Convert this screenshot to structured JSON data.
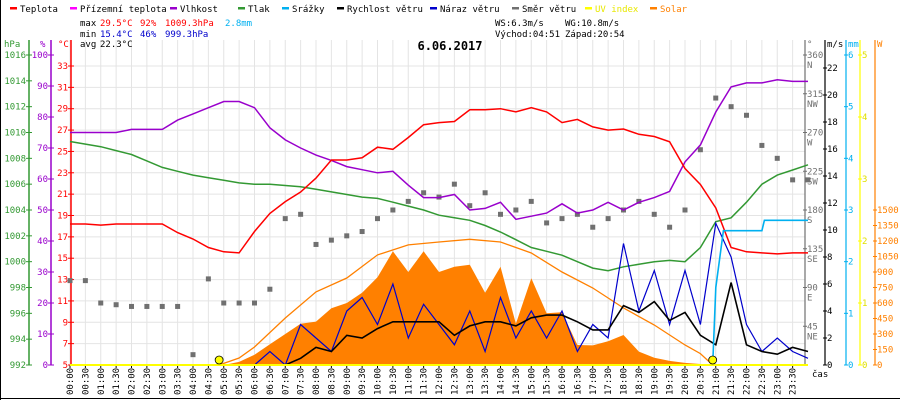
{
  "chart_data": {
    "type": "line",
    "title": "6.06.2017",
    "legend": [
      {
        "name": "Teplota",
        "color": "#ff0000"
      },
      {
        "name": "Přízemní teplota",
        "color": "#ff00ff"
      },
      {
        "name": "Vlhkost",
        "color": "#9900cc"
      },
      {
        "name": "Tlak",
        "color": "#339933"
      },
      {
        "name": "Srážky",
        "color": "#00b0f0"
      },
      {
        "name": "Rychlost větru",
        "color": "#000000"
      },
      {
        "name": "Náraz větru",
        "color": "#0000cc"
      },
      {
        "name": "Směr větru",
        "color": "#707070"
      },
      {
        "name": "UV index",
        "color": "#ffff00"
      },
      {
        "name": "Solar",
        "color": "#ff8000"
      }
    ],
    "legend_placement": "top",
    "stats": {
      "max_label": "max",
      "max_temp": "29.5°C",
      "max_hum": "92%",
      "max_press": "1009.3hPa",
      "rain_total": "2.8mm",
      "min_label": "min",
      "min_temp": "15.4°C",
      "min_hum": "46%",
      "min_press": "999.3hPa",
      "avg_label": "avg",
      "avg_temp": "22.3°C",
      "ws": "WS:6.3m/s",
      "wg": "WG:10.8m/s",
      "sunrise": "Východ:04:51",
      "sunset": "Západ:20:54"
    },
    "xlabel": "čas",
    "x_ticks": [
      "00:00",
      "00:30",
      "01:00",
      "01:30",
      "02:00",
      "02:30",
      "03:00",
      "03:30",
      "04:00",
      "04:30",
      "05:00",
      "05:30",
      "06:00",
      "06:30",
      "07:00",
      "07:30",
      "08:00",
      "08:30",
      "09:00",
      "09:30",
      "10:00",
      "10:30",
      "11:00",
      "11:30",
      "12:00",
      "12:30",
      "13:00",
      "13:30",
      "14:00",
      "14:30",
      "15:00",
      "15:30",
      "16:00",
      "16:30",
      "17:00",
      "17:30",
      "18:00",
      "18:30",
      "19:00",
      "19:30",
      "20:00",
      "20:30",
      "21:00",
      "21:30",
      "22:00",
      "22:30",
      "23:00",
      "23:30"
    ],
    "grid": true,
    "axes": {
      "pressure": {
        "unit": "hPa",
        "range": [
          992,
          1016
        ],
        "ticks": [
          "992",
          "994",
          "996",
          "998",
          "1000",
          "1002",
          "1004",
          "1006",
          "1008",
          "1010",
          "1012",
          "1014",
          "1016"
        ],
        "color": "#339933"
      },
      "humidity": {
        "unit": "%",
        "range": [
          0,
          100
        ],
        "ticks": [
          "0",
          "10",
          "20",
          "30",
          "40",
          "50",
          "60",
          "70",
          "80",
          "90",
          "100"
        ],
        "color": "#9900cc"
      },
      "temperature": {
        "unit": "°C",
        "range": [
          5,
          33
        ],
        "ticks": [
          "5",
          "7",
          "9",
          "11",
          "13",
          "15",
          "17",
          "19",
          "21",
          "23",
          "25",
          "27",
          "29",
          "31",
          "33"
        ],
        "color": "#ff0000"
      },
      "direction": {
        "unit": "°",
        "range": [
          0,
          360
        ],
        "ticks": [
          "45",
          "90",
          "135",
          "180",
          "225",
          "270",
          "315",
          "360"
        ],
        "compass": [
          "NE",
          "E",
          "SE",
          "S",
          "SW",
          "W",
          "NW",
          "N"
        ],
        "color": "#707070"
      },
      "wind": {
        "unit": "m/s",
        "range": [
          0,
          22
        ],
        "ticks": [
          "0",
          "2",
          "4",
          "6",
          "8",
          "10",
          "12",
          "14",
          "16",
          "18",
          "20",
          "22"
        ],
        "color": "#000000"
      },
      "rain": {
        "unit": "mm",
        "range": [
          0,
          6
        ],
        "ticks": [
          "0",
          "1",
          "2",
          "3",
          "4",
          "5",
          "6"
        ],
        "color": "#00b0f0"
      },
      "uv": {
        "unit": "",
        "range": [
          0,
          5
        ],
        "ticks": [
          "0",
          "1",
          "2",
          "3",
          "4",
          "5"
        ],
        "color": "#e0e000"
      },
      "solar": {
        "unit": "W",
        "range": [
          0,
          1500
        ],
        "ticks": [
          "0",
          "150",
          "300",
          "450",
          "600",
          "750",
          "900",
          "1050",
          "1200",
          "1350",
          "1500"
        ],
        "color": "#ff8000"
      }
    },
    "times": [
      "00:00",
      "00:30",
      "01:00",
      "01:30",
      "02:00",
      "02:30",
      "03:00",
      "03:30",
      "04:00",
      "04:30",
      "05:00",
      "05:30",
      "06:00",
      "06:30",
      "07:00",
      "07:30",
      "08:00",
      "08:30",
      "09:00",
      "09:30",
      "10:00",
      "10:30",
      "11:00",
      "11:30",
      "12:00",
      "12:30",
      "13:00",
      "13:30",
      "14:00",
      "14:30",
      "15:00",
      "15:30",
      "16:00",
      "16:30",
      "17:00",
      "17:30",
      "18:00",
      "18:30",
      "19:00",
      "19:30",
      "20:00",
      "20:30",
      "21:00",
      "21:30",
      "22:00",
      "22:30",
      "23:00",
      "23:30",
      "24:00"
    ],
    "series": [
      {
        "name": "Teplota",
        "axis": "temperature",
        "values": [
          18.2,
          18.2,
          18.1,
          18.2,
          18.2,
          18.2,
          18.2,
          17.4,
          16.8,
          16.0,
          15.6,
          15.5,
          17.5,
          19.2,
          20.3,
          21.2,
          22.5,
          24.2,
          24.2,
          24.4,
          25.4,
          25.2,
          26.3,
          27.5,
          27.7,
          27.8,
          28.9,
          28.9,
          29.0,
          28.7,
          29.1,
          28.7,
          27.7,
          28.0,
          27.3,
          27.0,
          27.1,
          26.6,
          26.4,
          25.9,
          23.4,
          21.9,
          19.7,
          16.0,
          15.6,
          15.5,
          15.4,
          15.5,
          15.5
        ]
      },
      {
        "name": "Vlhkost",
        "axis": "humidity",
        "values": [
          75,
          75,
          75,
          75,
          76,
          76,
          76,
          79,
          81,
          83,
          85,
          85,
          83,
          76.5,
          72.6,
          70,
          67.7,
          66,
          64,
          63,
          62,
          62.5,
          58,
          54,
          54,
          55,
          50,
          50.5,
          52.5,
          47,
          48,
          49,
          52,
          49,
          50,
          52.5,
          50,
          52.5,
          54,
          56,
          65.5,
          71,
          81.6,
          89.7,
          91,
          91,
          92,
          91.5,
          91.5
        ]
      },
      {
        "name": "Tlak",
        "axis": "pressure",
        "values": [
          1009.3,
          1009.1,
          1008.9,
          1008.6,
          1008.3,
          1007.8,
          1007.3,
          1007.0,
          1006.7,
          1006.5,
          1006.3,
          1006.1,
          1006.0,
          1006.0,
          1005.9,
          1005.8,
          1005.6,
          1005.4,
          1005.2,
          1005.0,
          1004.9,
          1004.6,
          1004.3,
          1004.0,
          1003.6,
          1003.4,
          1003.2,
          1002.8,
          1002.3,
          1001.7,
          1001.1,
          1000.8,
          1000.5,
          1000.0,
          999.5,
          999.3,
          999.6,
          999.8,
          1000.0,
          1000.1,
          1000.0,
          1001.1,
          1003.1,
          1003.4,
          1004.6,
          1006.0,
          1006.7,
          1007.1,
          1007.5
        ]
      },
      {
        "name": "Rychlost větru",
        "axis": "wind",
        "values": [
          0,
          0,
          0,
          0,
          0,
          0,
          0,
          0,
          0,
          0,
          0,
          0,
          0,
          0,
          0,
          0.5,
          1.3,
          1.0,
          2.2,
          2.0,
          2.7,
          3.2,
          3.2,
          3.2,
          3.2,
          2.2,
          2.9,
          3.2,
          3.2,
          2.9,
          3.5,
          3.7,
          3.7,
          3.2,
          2.6,
          2.6,
          4.4,
          3.9,
          4.7,
          3.3,
          3.9,
          2.2,
          1.5,
          6.1,
          1.5,
          1.0,
          0.8,
          1.3,
          1.0
        ]
      },
      {
        "name": "Náraz větru",
        "axis": "wind",
        "values": [
          0,
          0,
          0,
          0,
          0,
          0,
          0,
          0,
          0,
          0,
          0,
          0,
          0,
          1,
          0,
          3,
          2,
          1,
          4,
          5,
          3,
          6,
          2,
          4.5,
          3,
          1.5,
          4,
          1,
          5,
          2,
          4,
          2,
          4,
          1,
          3,
          2,
          9,
          4,
          7,
          3,
          7,
          3,
          10.5,
          8,
          3,
          1,
          2,
          1,
          0.5
        ]
      },
      {
        "name": "Směr větru",
        "axis": "direction",
        "values": [
          98,
          98,
          72,
          70,
          68,
          68,
          68,
          68,
          12,
          100,
          72,
          72,
          72,
          88,
          170,
          175,
          140,
          145,
          150,
          155,
          170,
          180,
          190,
          200,
          195,
          210,
          185,
          200,
          175,
          180,
          190,
          165,
          170,
          175,
          160,
          170,
          180,
          190,
          175,
          160,
          180,
          250,
          310,
          300,
          290,
          255,
          240,
          215,
          215
        ]
      },
      {
        "name": "Solar",
        "axis": "solar",
        "values": [
          0,
          0,
          0,
          0,
          0,
          0,
          0,
          0,
          0,
          0,
          0,
          30,
          100,
          200,
          300,
          400,
          420,
          550,
          600,
          700,
          850,
          1100,
          900,
          1100,
          900,
          950,
          970,
          700,
          950,
          400,
          840,
          500,
          510,
          194,
          190,
          230,
          290,
          130,
          70,
          40,
          20,
          10,
          0,
          0,
          0,
          0,
          0,
          0,
          0
        ]
      },
      {
        "name": "UV index",
        "axis": "uv",
        "values": [
          0,
          0,
          0,
          0,
          0,
          0,
          0,
          0,
          0,
          0,
          0,
          0,
          0,
          0,
          0,
          0,
          0,
          0,
          0,
          0,
          0,
          0,
          0,
          0,
          0,
          0,
          0,
          0,
          0,
          0,
          0,
          0,
          0,
          0,
          0,
          0,
          0,
          0,
          0,
          0,
          0,
          0,
          0,
          0,
          0,
          0,
          0,
          0,
          0
        ]
      }
    ],
    "solar_max": {
      "axis": "solar",
      "times": [
        "04:51",
        "05:30",
        "06:00",
        "07:00",
        "08:00",
        "09:00",
        "10:00",
        "11:00",
        "12:00",
        "13:00",
        "14:00",
        "15:00",
        "16:00",
        "17:00",
        "18:00",
        "19:00",
        "20:00",
        "20:30",
        "20:54"
      ],
      "values": [
        0,
        68,
        174,
        455,
        707,
        842,
        1065,
        1162,
        1190,
        1216,
        1190,
        1084,
        900,
        745,
        552,
        387,
        194,
        110,
        0
      ]
    },
    "rain": {
      "name": "Srážky",
      "axis": "rain",
      "times": [
        "20:54",
        "21:00",
        "21:15",
        "22:30",
        "22:35",
        "24:00"
      ],
      "values": [
        0,
        1.5,
        2.6,
        2.6,
        2.8,
        2.8
      ]
    },
    "sun_markers": [
      "04:51",
      "20:54"
    ]
  }
}
